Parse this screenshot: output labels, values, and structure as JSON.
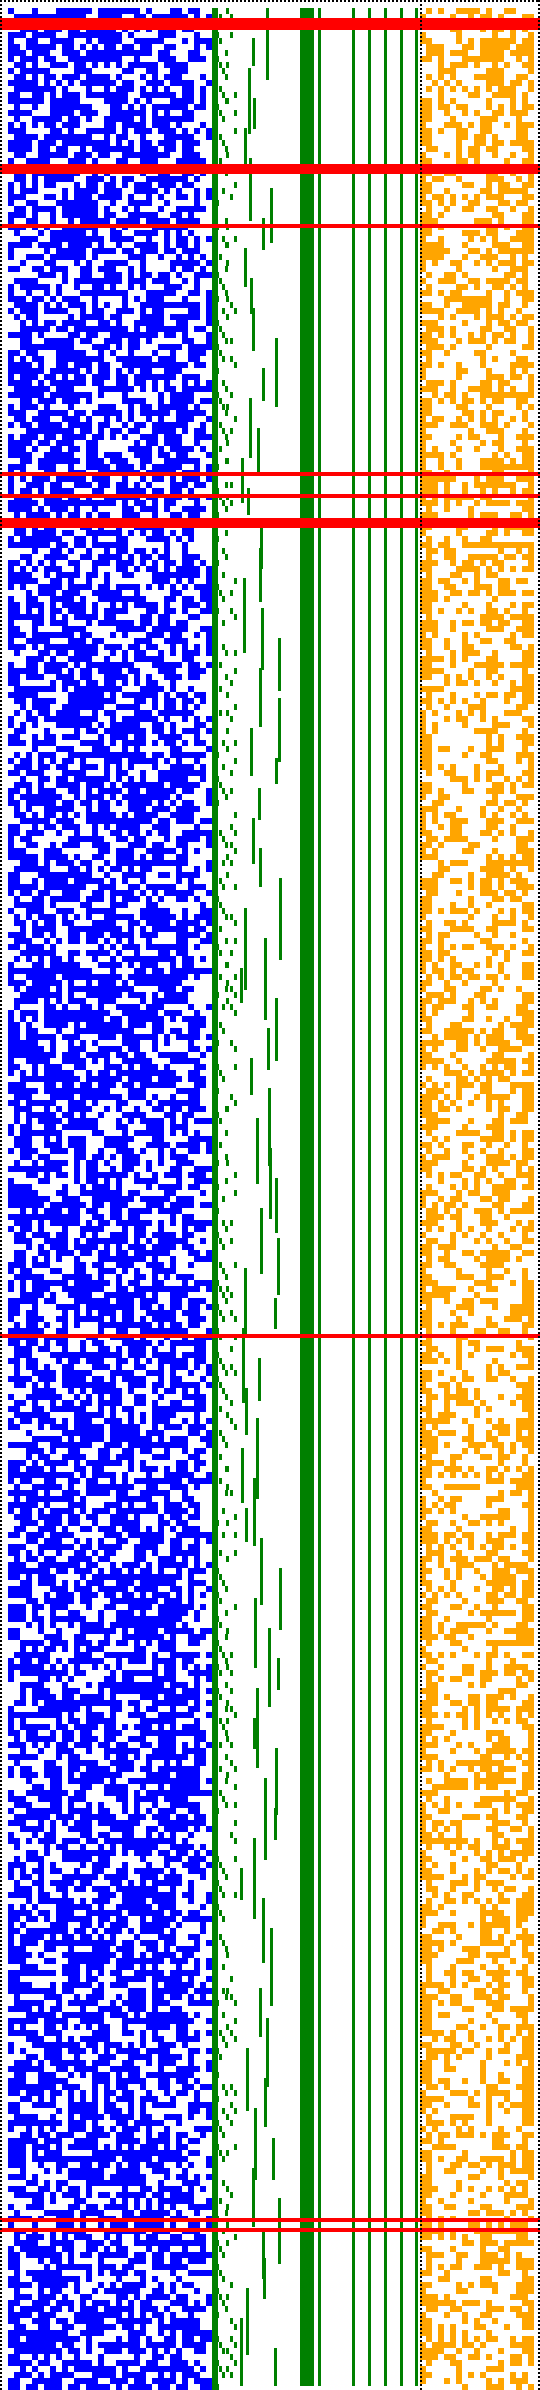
{
  "colors": {
    "background": "#ffffff",
    "border": "#000000",
    "blue_block": "#0000ff",
    "green_block": "#008000",
    "orange_block": "#ffa500",
    "red_line": "#ff0000"
  },
  "blocks": [
    {
      "name": "blue-noise-block",
      "color_key": "blue_block",
      "pattern": "dense-random-noise"
    },
    {
      "name": "green-staircase-block",
      "color_key": "green_block",
      "pattern": "staircase-and-vertical-bars"
    },
    {
      "name": "orange-noise-block",
      "color_key": "orange_block",
      "pattern": "column-biased-noise"
    }
  ],
  "red_lines": {
    "count": 9,
    "color_key": "red_line"
  },
  "border": {
    "style": "dotted",
    "color_key": "border"
  }
}
